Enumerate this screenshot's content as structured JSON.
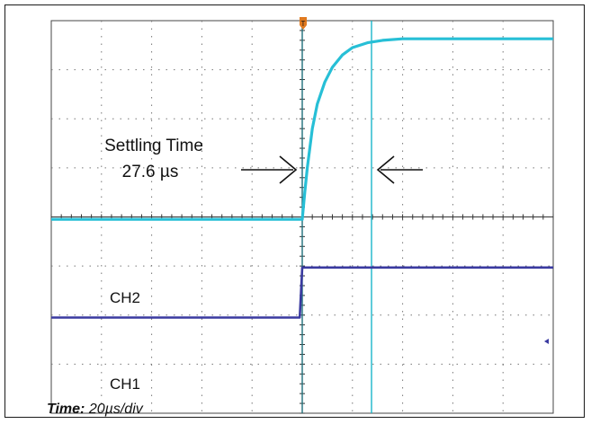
{
  "chart_data": {
    "type": "line",
    "divisions": {
      "x": 10,
      "y": 8
    },
    "annotation": {
      "line1": "Settling Time",
      "line2": "27.6 µs"
    },
    "trigger_marker": "T",
    "timebase": {
      "label": "Time:",
      "value": "20µs/div"
    },
    "series": [
      {
        "name": "CH2",
        "color": "#27bfd6",
        "x": [
          0,
          4.9,
          5.0,
          5.05,
          5.1,
          5.2,
          5.3,
          5.45,
          5.6,
          5.8,
          6.0,
          6.3,
          6.6,
          7.0,
          7.5,
          8.0,
          9.0,
          10.0
        ],
        "y": [
          3.95,
          3.95,
          3.95,
          4.5,
          5.0,
          5.8,
          6.3,
          6.75,
          7.05,
          7.3,
          7.45,
          7.55,
          7.6,
          7.63,
          7.63,
          7.63,
          7.63,
          7.63
        ]
      },
      {
        "name": "CH1",
        "color": "#3a3aa0",
        "x": [
          0,
          4.95,
          5.0,
          10.0
        ],
        "y": [
          1.95,
          1.95,
          2.97,
          2.97
        ]
      }
    ],
    "cursor_x": [
      5.0,
      6.38
    ]
  }
}
